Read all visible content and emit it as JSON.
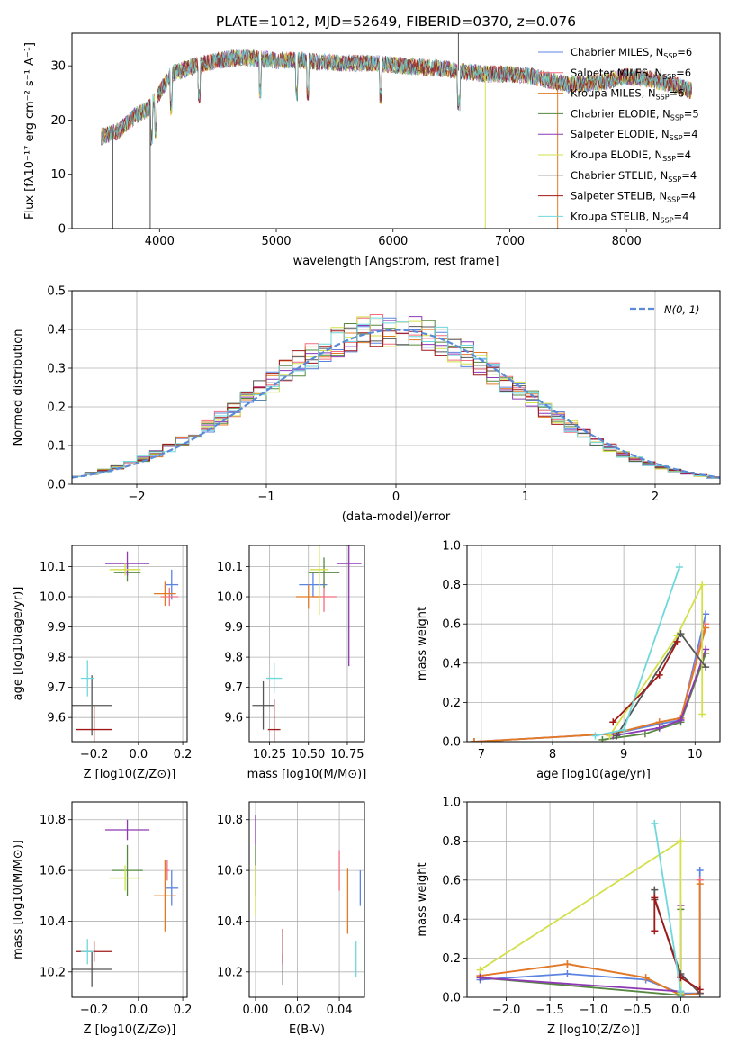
{
  "figure": {
    "title": "PLATE=1012, MJD=52649, FIBERID=0370, z=0.076"
  },
  "colors": {
    "Chabrier MILES": "#5b84e0",
    "Salpeter MILES": "#f26d7f",
    "Kroupa MILES": "#e07b24",
    "Chabrier ELODIE": "#55883f",
    "Salpeter ELODIE": "#8e3ab5",
    "Kroupa ELODIE": "#d3e04a",
    "Chabrier STELIB": "#555555",
    "Salpeter STELIB": "#a01818",
    "Kroupa STELIB": "#6fd8dc",
    "gaussian": "#5b8ad6"
  },
  "legend_spectrum": [
    {
      "name": "Chabrier MILES, N",
      "sub": "SSP",
      "eq": "=6"
    },
    {
      "name": "Salpeter MILES, N",
      "sub": "SSP",
      "eq": "=6"
    },
    {
      "name": "Kroupa MILES, N",
      "sub": "SSP",
      "eq": "=6"
    },
    {
      "name": "Chabrier ELODIE, N",
      "sub": "SSP",
      "eq": "=5"
    },
    {
      "name": "Salpeter ELODIE, N",
      "sub": "SSP",
      "eq": "=4"
    },
    {
      "name": "Kroupa ELODIE, N",
      "sub": "SSP",
      "eq": "=4"
    },
    {
      "name": "Chabrier STELIB, N",
      "sub": "SSP",
      "eq": "=4"
    },
    {
      "name": "Salpeter STELIB, N",
      "sub": "SSP",
      "eq": "=4"
    },
    {
      "name": "Kroupa STELIB, N",
      "sub": "SSP",
      "eq": "=4"
    }
  ],
  "chart_data": [
    {
      "id": "spectrum",
      "type": "line",
      "xlabel": "wavelength [Angstrom, rest frame]",
      "ylabel": "Flux [fλ10⁻¹⁷ erg cm⁻² s⁻¹ A⁻¹]",
      "xlim": [
        3250,
        8800
      ],
      "ylim": [
        0,
        36
      ],
      "xticks": [
        "4000",
        "5000",
        "6000",
        "7000",
        "8000"
      ],
      "yticks": [
        "0",
        "10",
        "20",
        "30"
      ],
      "continuum": {
        "x": [
          3500,
          3650,
          3800,
          3900,
          4000,
          4100,
          4300,
          4500,
          4700,
          5000,
          5200,
          5500,
          5800,
          6100,
          6400,
          6600,
          6800,
          7000,
          7200,
          7500,
          7800,
          8000,
          8200,
          8400,
          8550
        ],
        "y": [
          17,
          18,
          21,
          22,
          25,
          28.5,
          30,
          31,
          31.5,
          31,
          31,
          30.5,
          30.5,
          30,
          29.5,
          29,
          28.5,
          28.5,
          28,
          26.5,
          27,
          28,
          27.5,
          26.5,
          25.5
        ]
      },
      "spike_features": [
        {
          "x": 3600,
          "y": 0
        },
        {
          "x": 3920,
          "y": 0
        },
        {
          "x": 6560,
          "y": 36
        },
        {
          "x": 6790,
          "y": 0
        },
        {
          "x": 7410,
          "y": 0
        }
      ]
    },
    {
      "id": "residual-histogram",
      "type": "line",
      "xlabel": "(data-model)/error",
      "ylabel": "Normed distribution",
      "xlim": [
        -2.5,
        2.5
      ],
      "ylim": [
        0,
        0.5
      ],
      "xticks": [
        "−2",
        "−1",
        "0",
        "1",
        "2"
      ],
      "yticks": [
        "0.0",
        "0.1",
        "0.2",
        "0.3",
        "0.4",
        "0.5"
      ],
      "series_label": "N(0, 1)",
      "bin_width": 0.1
    },
    {
      "id": "age-vs-Z",
      "type": "scatter",
      "xlabel": "Z [log10(Z/Z⊙)]",
      "ylabel": "age [log10(age/yr)]",
      "xlim": [
        -0.3,
        0.22
      ],
      "ylim": [
        9.52,
        10.17
      ],
      "xticks": [
        "−0.2",
        "0.0",
        "0.2"
      ],
      "yticks": [
        "9.6",
        "9.7",
        "9.8",
        "9.9",
        "10.0",
        "10.1"
      ],
      "points": [
        {
          "m": "Chabrier MILES",
          "x": 0.15,
          "y": 10.04,
          "ex": 0.03,
          "ey": 0.05
        },
        {
          "m": "Salpeter MILES",
          "x": 0.14,
          "y": 10.0,
          "ex": 0.04,
          "ey": 0.03
        },
        {
          "m": "Kroupa MILES",
          "x": 0.12,
          "y": 10.01,
          "ex": 0.05,
          "ey": 0.04
        },
        {
          "m": "Chabrier ELODIE",
          "x": -0.05,
          "y": 10.08,
          "ex": 0.06,
          "ey": 0.03
        },
        {
          "m": "Salpeter ELODIE",
          "x": -0.05,
          "y": 10.11,
          "ex": 0.1,
          "ey": 0.04
        },
        {
          "m": "Kroupa ELODIE",
          "x": -0.06,
          "y": 10.09,
          "ex": 0.07,
          "ey": 0.02
        },
        {
          "m": "Chabrier STELIB",
          "x": -0.21,
          "y": 9.64,
          "ex": 0.09,
          "ey": 0.1
        },
        {
          "m": "Salpeter STELIB",
          "x": -0.2,
          "y": 9.56,
          "ex": 0.08,
          "ey": 0.08
        },
        {
          "m": "Kroupa STELIB",
          "x": -0.23,
          "y": 9.73,
          "ex": 0.03,
          "ey": 0.06
        }
      ]
    },
    {
      "id": "age-vs-mass",
      "type": "scatter",
      "xlabel": "mass [log10(M/M⊙)]",
      "ylabel": "",
      "xlim": [
        10.12,
        10.86
      ],
      "ylim": [
        9.52,
        10.17
      ],
      "xticks": [
        "10.25",
        "10.50",
        "10.75"
      ],
      "yticks": [
        "9.6",
        "9.7",
        "9.8",
        "9.9",
        "10.0",
        "10.1"
      ],
      "points": [
        {
          "m": "Chabrier MILES",
          "x": 10.53,
          "y": 10.04,
          "ex": 0.09,
          "ey": 0.04
        },
        {
          "m": "Salpeter MILES",
          "x": 10.6,
          "y": 10.0,
          "ex": 0.08,
          "ey": 0.05
        },
        {
          "m": "Kroupa MILES",
          "x": 10.5,
          "y": 10.0,
          "ex": 0.08,
          "ey": 0.04
        },
        {
          "m": "Chabrier ELODIE",
          "x": 10.6,
          "y": 10.08,
          "ex": 0.1,
          "ey": 0.05
        },
        {
          "m": "Salpeter ELODIE",
          "x": 10.76,
          "y": 10.11,
          "ex": 0.08,
          "ey": 0.34
        },
        {
          "m": "Kroupa ELODIE",
          "x": 10.57,
          "y": 10.09,
          "ex": 0.06,
          "ey": 0.15
        },
        {
          "m": "Chabrier STELIB",
          "x": 10.21,
          "y": 9.64,
          "ex": 0.07,
          "ey": 0.08
        },
        {
          "m": "Salpeter STELIB",
          "x": 10.28,
          "y": 9.56,
          "ex": 0.04,
          "ey": 0.1
        },
        {
          "m": "Kroupa STELIB",
          "x": 10.28,
          "y": 9.73,
          "ex": 0.05,
          "ey": 0.05
        }
      ]
    },
    {
      "id": "mass-weight-vs-age",
      "type": "line",
      "xlabel": "age [log10(age/yr)]",
      "ylabel": "mass weight",
      "xlim": [
        6.8,
        10.35
      ],
      "ylim": [
        0,
        1
      ],
      "xticks": [
        "7",
        "8",
        "9",
        "10"
      ],
      "yticks": [
        "0.0",
        "0.2",
        "0.4",
        "0.6",
        "0.8",
        "1.0"
      ],
      "series": [
        {
          "name": "Chabrier MILES",
          "x": [
            6.9,
            8.85,
            9.5,
            9.8,
            10.15
          ],
          "y": [
            0.0,
            0.04,
            0.09,
            0.11,
            0.65
          ]
        },
        {
          "name": "Salpeter MILES",
          "x": [
            6.9,
            8.85,
            9.5,
            9.8,
            10.15
          ],
          "y": [
            0.0,
            0.04,
            0.1,
            0.12,
            0.6
          ]
        },
        {
          "name": "Kroupa MILES",
          "x": [
            6.9,
            8.85,
            9.5,
            9.8,
            10.15
          ],
          "y": [
            0.0,
            0.04,
            0.1,
            0.12,
            0.58
          ]
        },
        {
          "name": "Chabrier ELODIE",
          "x": [
            8.7,
            9.3,
            9.8,
            10.15
          ],
          "y": [
            0.01,
            0.04,
            0.1,
            0.45
          ]
        },
        {
          "name": "Salpeter ELODIE",
          "x": [
            8.85,
            9.5,
            9.8,
            10.15
          ],
          "y": [
            0.03,
            0.07,
            0.11,
            0.47
          ]
        },
        {
          "name": "Kroupa ELODIE",
          "x": [
            8.8,
            9.75,
            10.1,
            10.1
          ],
          "y": [
            0.03,
            0.54,
            0.8,
            0.14
          ]
        },
        {
          "name": "Chabrier STELIB",
          "x": [
            8.9,
            9.8,
            10.15
          ],
          "y": [
            0.03,
            0.55,
            0.38
          ]
        },
        {
          "name": "Salpeter STELIB",
          "x": [
            8.85,
            9.5,
            9.75
          ],
          "y": [
            0.1,
            0.34,
            0.51
          ]
        },
        {
          "name": "Kroupa STELIB",
          "x": [
            8.6,
            9.0,
            9.78
          ],
          "y": [
            0.03,
            0.06,
            0.89
          ]
        }
      ]
    },
    {
      "id": "mass-vs-Z",
      "type": "scatter",
      "xlabel": "Z [log10(Z/Z⊙)]",
      "ylabel": "mass [log10(M/M⊙)]",
      "xlim": [
        -0.3,
        0.22
      ],
      "ylim": [
        10.1,
        10.87
      ],
      "xticks": [
        "−0.2",
        "0.0",
        "0.2"
      ],
      "yticks": [
        "10.2",
        "10.4",
        "10.6",
        "10.8"
      ],
      "points": [
        {
          "m": "Chabrier MILES",
          "x": 0.15,
          "y": 10.53,
          "ex": 0.03,
          "ey": 0.07
        },
        {
          "m": "Salpeter MILES",
          "x": 0.13,
          "y": 10.6,
          "ex": 0.01,
          "ey": 0.04
        },
        {
          "m": "Kroupa MILES",
          "x": 0.12,
          "y": 10.5,
          "ex": 0.05,
          "ey": 0.14
        },
        {
          "m": "Chabrier ELODIE",
          "x": -0.05,
          "y": 10.6,
          "ex": 0.07,
          "ey": 0.1
        },
        {
          "m": "Salpeter ELODIE",
          "x": -0.05,
          "y": 10.76,
          "ex": 0.1,
          "ey": 0.04
        },
        {
          "m": "Kroupa ELODIE",
          "x": -0.06,
          "y": 10.57,
          "ex": 0.07,
          "ey": 0.05
        },
        {
          "m": "Chabrier STELIB",
          "x": -0.21,
          "y": 10.21,
          "ex": 0.09,
          "ey": 0.07
        },
        {
          "m": "Salpeter STELIB",
          "x": -0.2,
          "y": 10.28,
          "ex": 0.08,
          "ey": 0.04
        },
        {
          "m": "Kroupa STELIB",
          "x": -0.23,
          "y": 10.28,
          "ex": 0.03,
          "ey": 0.05
        }
      ]
    },
    {
      "id": "mass-vs-ebv",
      "type": "scatter",
      "xlabel": "E(B-V)",
      "ylabel": "",
      "xlim": [
        -0.003,
        0.052
      ],
      "ylim": [
        10.1,
        10.87
      ],
      "xticks": [
        "0.00",
        "0.02",
        "0.04"
      ],
      "yticks": [
        "10.2",
        "10.4",
        "10.6",
        "10.8"
      ],
      "points": [
        {
          "m": "Chabrier MILES",
          "x": 0.05,
          "y": 10.53,
          "ex": 0,
          "ey": 0.07
        },
        {
          "m": "Salpeter MILES",
          "x": 0.04,
          "y": 10.6,
          "ex": 0,
          "ey": 0.08
        },
        {
          "m": "Kroupa MILES",
          "x": 0.044,
          "y": 10.48,
          "ex": 0,
          "ey": 0.13
        },
        {
          "m": "Chabrier ELODIE",
          "x": 0.0,
          "y": 10.6,
          "ex": 0,
          "ey": 0.1
        },
        {
          "m": "Salpeter ELODIE",
          "x": 0.0,
          "y": 10.76,
          "ex": 0,
          "ey": 0.06
        },
        {
          "m": "Kroupa ELODIE",
          "x": 0.0,
          "y": 10.52,
          "ex": 0,
          "ey": 0.1
        },
        {
          "m": "Chabrier STELIB",
          "x": 0.013,
          "y": 10.21,
          "ex": 0,
          "ey": 0.06
        },
        {
          "m": "Salpeter STELIB",
          "x": 0.013,
          "y": 10.3,
          "ex": 0,
          "ey": 0.07
        },
        {
          "m": "Kroupa STELIB",
          "x": 0.048,
          "y": 10.25,
          "ex": 0,
          "ey": 0.07
        }
      ]
    },
    {
      "id": "mass-weight-vs-Z",
      "type": "line",
      "xlabel": "Z [log10(Z/Z⊙)]",
      "ylabel": "mass weight",
      "xlim": [
        -2.45,
        0.45
      ],
      "ylim": [
        0,
        1
      ],
      "xticks": [
        "−2.0",
        "−1.5",
        "−1.0",
        "−0.5",
        "0.0"
      ],
      "yticks": [
        "0.0",
        "0.2",
        "0.4",
        "0.6",
        "0.8",
        "1.0"
      ],
      "series": [
        {
          "name": "Chabrier MILES",
          "x": [
            -2.3,
            -1.3,
            -0.4,
            0.0,
            0.22,
            0.22
          ],
          "y": [
            0.09,
            0.12,
            0.09,
            0.02,
            0.02,
            0.65
          ]
        },
        {
          "name": "Salpeter MILES",
          "x": [
            -2.3,
            -1.3,
            -0.4,
            0.0,
            0.22,
            0.22
          ],
          "y": [
            0.11,
            0.17,
            0.1,
            0.01,
            0.02,
            0.6
          ]
        },
        {
          "name": "Kroupa MILES",
          "x": [
            -2.3,
            -1.3,
            -0.4,
            0.0,
            0.22,
            0.22
          ],
          "y": [
            0.11,
            0.17,
            0.1,
            0.01,
            0.02,
            0.58
          ]
        },
        {
          "name": "Chabrier ELODIE",
          "x": [
            -2.3,
            0.0,
            0.0,
            0.0
          ],
          "y": [
            0.1,
            0.01,
            0.02,
            0.45
          ]
        },
        {
          "name": "Salpeter ELODIE",
          "x": [
            -2.3,
            0.0,
            0.0,
            0.0
          ],
          "y": [
            0.1,
            0.03,
            0.11,
            0.47
          ]
        },
        {
          "name": "Kroupa ELODIE",
          "x": [
            -2.3,
            0.0,
            0.0,
            0.0
          ],
          "y": [
            0.14,
            0.8,
            0.03,
            0.02
          ]
        },
        {
          "name": "Chabrier STELIB",
          "x": [
            -0.3,
            -0.3,
            0.0,
            0.22
          ],
          "y": [
            0.55,
            0.5,
            0.12,
            0.02
          ]
        },
        {
          "name": "Salpeter STELIB",
          "x": [
            -0.3,
            -0.3,
            0.0,
            0.22
          ],
          "y": [
            0.34,
            0.51,
            0.1,
            0.04
          ]
        },
        {
          "name": "Kroupa STELIB",
          "x": [
            -0.3,
            0.0,
            0.0
          ],
          "y": [
            0.89,
            0.03,
            0.0
          ]
        }
      ]
    }
  ]
}
